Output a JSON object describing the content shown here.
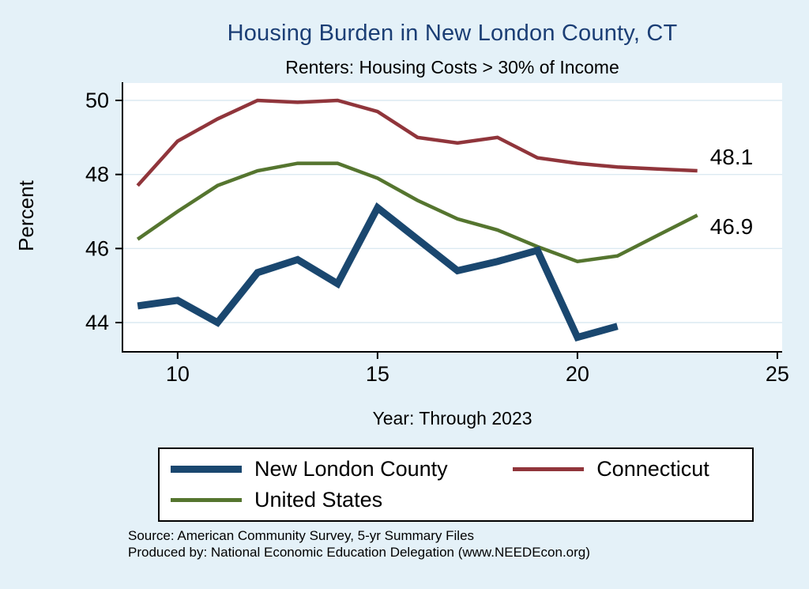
{
  "chart_data": {
    "type": "line",
    "title": "Housing Burden in New London County, CT",
    "subtitle": "Renters: Housing Costs > 30% of Income",
    "xlabel": "Year: Through 2023",
    "ylabel": "Percent",
    "xlim": [
      8.62,
      25.12
    ],
    "ylim": [
      43.21,
      50.47
    ],
    "xticks": [
      10,
      15,
      20,
      25
    ],
    "yticks": [
      44,
      46,
      48,
      50
    ],
    "grid": true,
    "legend_position": "bottom",
    "series": [
      {
        "name": "New London County",
        "color": "#1a476f",
        "width": 9,
        "x": [
          9,
          10,
          11,
          12,
          13,
          14,
          15,
          16,
          17,
          18,
          19,
          20,
          21
        ],
        "y": [
          44.45,
          44.6,
          44.0,
          45.35,
          45.7,
          45.05,
          47.1,
          46.25,
          45.4,
          45.65,
          45.95,
          43.6,
          43.9
        ]
      },
      {
        "name": "Connecticut",
        "color": "#90353b",
        "width": 4.5,
        "x": [
          9,
          10,
          11,
          12,
          13,
          14,
          15,
          16,
          17,
          18,
          19,
          20,
          21,
          22,
          23
        ],
        "y": [
          47.7,
          48.9,
          49.5,
          50.0,
          49.95,
          50.0,
          49.7,
          49.0,
          48.85,
          49.0,
          48.45,
          48.3,
          48.2,
          48.15,
          48.1
        ],
        "end_label": "48.1",
        "end_label_dy": -8
      },
      {
        "name": "United States",
        "color": "#55752f",
        "width": 4.5,
        "x": [
          9,
          10,
          11,
          12,
          13,
          14,
          15,
          16,
          17,
          18,
          19,
          20,
          21,
          22,
          23
        ],
        "y": [
          46.25,
          47.0,
          47.7,
          48.1,
          48.3,
          48.3,
          47.9,
          47.3,
          46.8,
          46.5,
          46.05,
          45.65,
          45.8,
          46.35,
          46.9
        ],
        "end_label": "46.9",
        "end_label_dy": 24
      }
    ]
  },
  "footnotes": {
    "source": "Source: American Community Survey, 5-yr Summary Files",
    "produced_by": "Produced by: National Economic Education Delegation (www.NEEDEcon.org)"
  },
  "colors": {
    "background": "#e4f1f8",
    "plot_background": "#ffffff",
    "grid": "#dceaf2",
    "axis": "#000000",
    "title": "#1b3e75"
  }
}
